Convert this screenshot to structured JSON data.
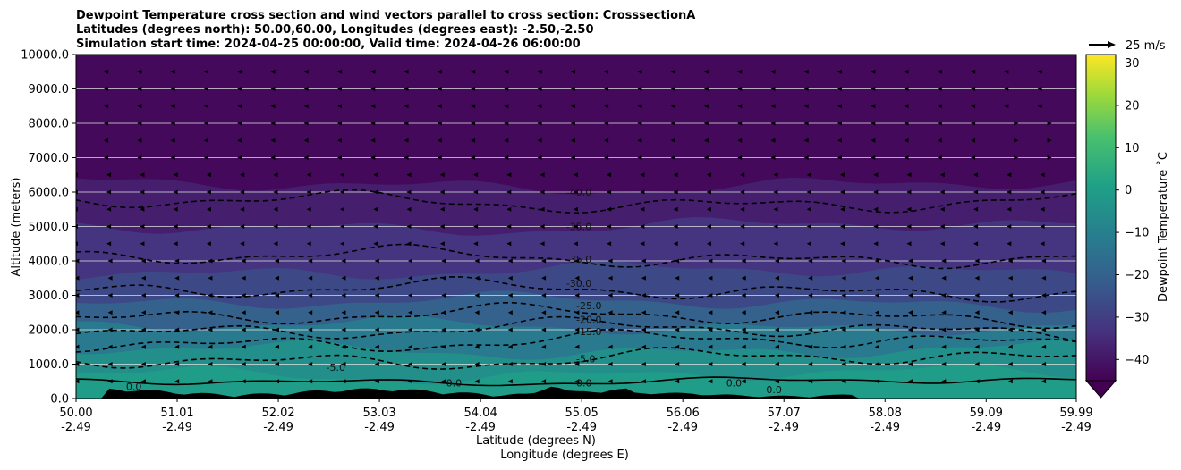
{
  "chart_data": {
    "type": "heatmap",
    "title_lines": [
      "Dewpoint Temperature cross section and wind vectors parallel to cross section: CrosssectionA",
      "Latitudes (degrees north): 50.00,60.00, Longitudes (degrees east): -2.50,-2.50",
      "Simulation start time: 2024-04-25 00:00:00, Valid time: 2024-04-26 06:00:00"
    ],
    "ylabel": "Altitude (meters)",
    "xlabel_lines": [
      "Latitude (degrees N)",
      "Longitude (degrees E)"
    ],
    "ylim": [
      0,
      10000
    ],
    "xlim": [
      50.0,
      59.99
    ],
    "y_ticks": [
      "0.0",
      "1000.0",
      "2000.0",
      "3000.0",
      "4000.0",
      "5000.0",
      "6000.0",
      "7000.0",
      "8000.0",
      "9000.0",
      "10000.0"
    ],
    "x_ticks": [
      {
        "lat": "50.00",
        "lon": "-2.49"
      },
      {
        "lat": "51.01",
        "lon": "-2.49"
      },
      {
        "lat": "52.02",
        "lon": "-2.49"
      },
      {
        "lat": "53.03",
        "lon": "-2.49"
      },
      {
        "lat": "54.04",
        "lon": "-2.49"
      },
      {
        "lat": "55.05",
        "lon": "-2.49"
      },
      {
        "lat": "56.06",
        "lon": "-2.49"
      },
      {
        "lat": "57.07",
        "lon": "-2.49"
      },
      {
        "lat": "58.08",
        "lon": "-2.49"
      },
      {
        "lat": "59.09",
        "lon": "-2.49"
      },
      {
        "lat": "59.99",
        "lon": "-2.49"
      }
    ],
    "grid": "horizontal",
    "colorbar": {
      "label": "Dewpoint Temperature ˚C",
      "colormap": "viridis",
      "range": [
        -45,
        32
      ],
      "extend": "min",
      "ticks": [
        "30",
        "20",
        "10",
        "0",
        "−10",
        "−20",
        "−30",
        "−40"
      ]
    },
    "quiver_key": {
      "label": "25 m/s"
    },
    "contour_labels": [
      "-40.0",
      "-35.0",
      "-35.0",
      "-30.0",
      "-25.0",
      "-20.0",
      "-15.0",
      "-5.0",
      "-5.0",
      "0.0",
      "0.0",
      "0.0",
      "0.0",
      "0.0"
    ],
    "layers": [
      {
        "top_m": 700,
        "dewpoint_c": 0
      },
      {
        "top_m": 1400,
        "dewpoint_c": -5
      },
      {
        "top_m": 2100,
        "dewpoint_c": -12
      },
      {
        "top_m": 2800,
        "dewpoint_c": -20
      },
      {
        "top_m": 3700,
        "dewpoint_c": -27
      },
      {
        "top_m": 5000,
        "dewpoint_c": -33
      },
      {
        "top_m": 6200,
        "dewpoint_c": -38
      },
      {
        "top_m": 10000,
        "dewpoint_c": -43
      }
    ],
    "contour_levels_c": [
      0,
      -5,
      -15,
      -20,
      -25,
      -30,
      -35,
      -40
    ]
  }
}
